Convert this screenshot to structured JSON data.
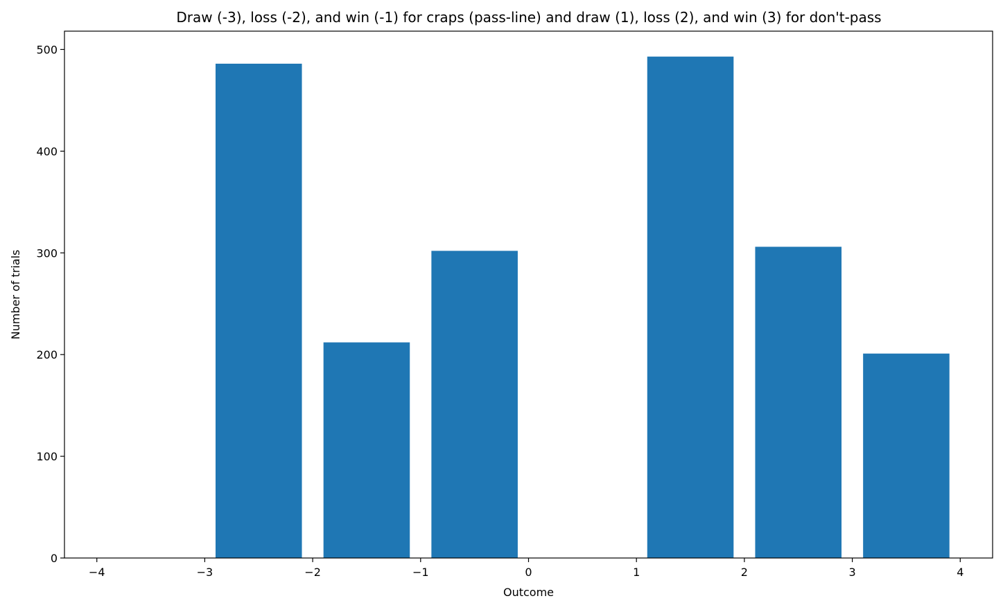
{
  "chart_data": {
    "type": "bar",
    "title": "Draw (-3), loss (-2), and win (-1) for craps (pass-line) and draw (1), loss (2), and win (3) for don't-pass",
    "xlabel": "Outcome",
    "ylabel": "Number of trials",
    "xlim": [
      -4.3,
      4.3
    ],
    "ylim": [
      0,
      518
    ],
    "xticks": [
      -4,
      -3,
      -2,
      -1,
      0,
      1,
      2,
      3,
      4
    ],
    "xtick_labels": [
      "−4",
      "−3",
      "−2",
      "−1",
      "0",
      "1",
      "2",
      "3",
      "4"
    ],
    "yticks": [
      0,
      100,
      200,
      300,
      400,
      500
    ],
    "ytick_labels": [
      "0",
      "100",
      "200",
      "300",
      "400",
      "500"
    ],
    "bar_width": 0.8,
    "grid": false,
    "legend": "none",
    "color": "#1f77b4",
    "bars": [
      {
        "x": -2.5,
        "value": 486
      },
      {
        "x": -1.5,
        "value": 212
      },
      {
        "x": -0.5,
        "value": 302
      },
      {
        "x": 1.5,
        "value": 493
      },
      {
        "x": 2.5,
        "value": 306
      },
      {
        "x": 3.5,
        "value": 201
      }
    ]
  }
}
